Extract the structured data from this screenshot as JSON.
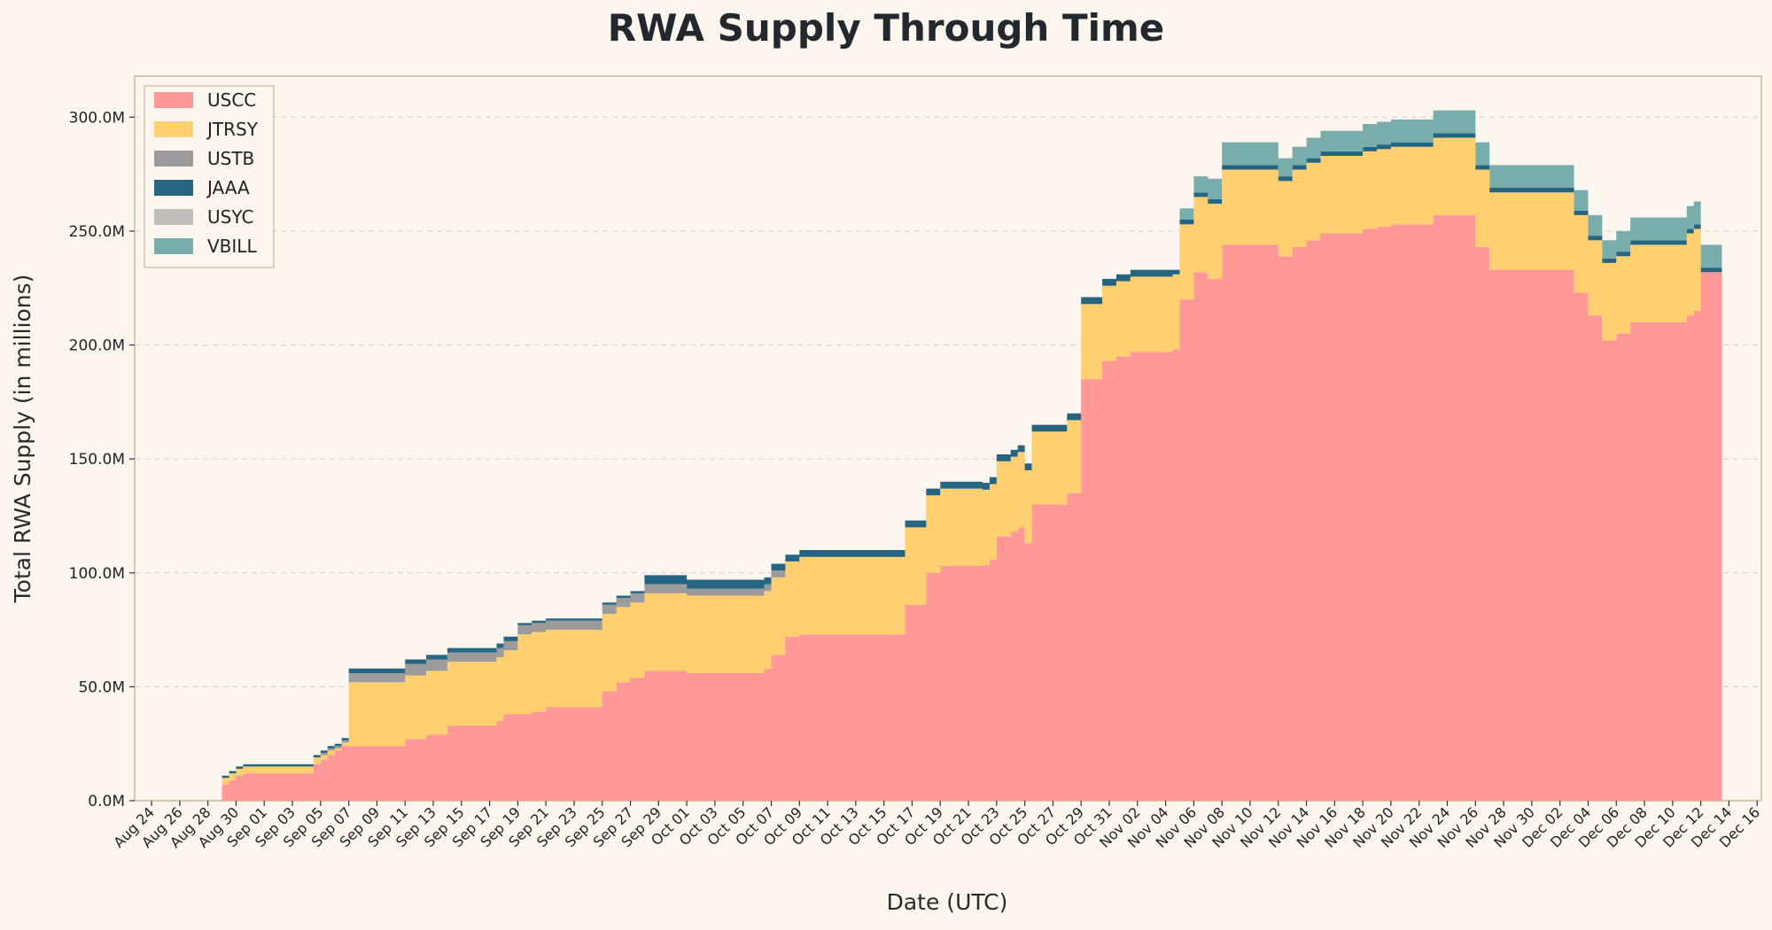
{
  "chart_data": {
    "type": "area",
    "stacked": true,
    "title": "RWA Supply Through Time",
    "xlabel": "Date (UTC)",
    "ylabel": "Total RWA Supply (in millions)",
    "ylim": [
      0,
      318
    ],
    "y_ticks": [
      {
        "value": 0,
        "label": "0.0M"
      },
      {
        "value": 50,
        "label": "50.0M"
      },
      {
        "value": 100,
        "label": "100.0M"
      },
      {
        "value": 150,
        "label": "150.0M"
      },
      {
        "value": 200,
        "label": "200.0M"
      },
      {
        "value": 250,
        "label": "250.0M"
      },
      {
        "value": 300,
        "label": "300.0M"
      }
    ],
    "x_days_range": [
      -1.2,
      114.3
    ],
    "x_ticks": [
      {
        "day": 0,
        "label": "Aug 24"
      },
      {
        "day": 2,
        "label": "Aug 26"
      },
      {
        "day": 4,
        "label": "Aug 28"
      },
      {
        "day": 6,
        "label": "Aug 30"
      },
      {
        "day": 8,
        "label": "Sep 01"
      },
      {
        "day": 10,
        "label": "Sep 03"
      },
      {
        "day": 12,
        "label": "Sep 05"
      },
      {
        "day": 14,
        "label": "Sep 07"
      },
      {
        "day": 16,
        "label": "Sep 09"
      },
      {
        "day": 18,
        "label": "Sep 11"
      },
      {
        "day": 20,
        "label": "Sep 13"
      },
      {
        "day": 22,
        "label": "Sep 15"
      },
      {
        "day": 24,
        "label": "Sep 17"
      },
      {
        "day": 26,
        "label": "Sep 19"
      },
      {
        "day": 28,
        "label": "Sep 21"
      },
      {
        "day": 30,
        "label": "Sep 23"
      },
      {
        "day": 32,
        "label": "Sep 25"
      },
      {
        "day": 34,
        "label": "Sep 27"
      },
      {
        "day": 36,
        "label": "Sep 29"
      },
      {
        "day": 38,
        "label": "Oct 01"
      },
      {
        "day": 40,
        "label": "Oct 03"
      },
      {
        "day": 42,
        "label": "Oct 05"
      },
      {
        "day": 44,
        "label": "Oct 07"
      },
      {
        "day": 46,
        "label": "Oct 09"
      },
      {
        "day": 48,
        "label": "Oct 11"
      },
      {
        "day": 50,
        "label": "Oct 13"
      },
      {
        "day": 52,
        "label": "Oct 15"
      },
      {
        "day": 54,
        "label": "Oct 17"
      },
      {
        "day": 56,
        "label": "Oct 19"
      },
      {
        "day": 58,
        "label": "Oct 21"
      },
      {
        "day": 60,
        "label": "Oct 23"
      },
      {
        "day": 62,
        "label": "Oct 25"
      },
      {
        "day": 64,
        "label": "Oct 27"
      },
      {
        "day": 66,
        "label": "Oct 29"
      },
      {
        "day": 68,
        "label": "Oct 31"
      },
      {
        "day": 70,
        "label": "Nov 02"
      },
      {
        "day": 72,
        "label": "Nov 04"
      },
      {
        "day": 74,
        "label": "Nov 06"
      },
      {
        "day": 76,
        "label": "Nov 08"
      },
      {
        "day": 78,
        "label": "Nov 10"
      },
      {
        "day": 80,
        "label": "Nov 12"
      },
      {
        "day": 82,
        "label": "Nov 14"
      },
      {
        "day": 84,
        "label": "Nov 16"
      },
      {
        "day": 86,
        "label": "Nov 18"
      },
      {
        "day": 88,
        "label": "Nov 20"
      },
      {
        "day": 90,
        "label": "Nov 22"
      },
      {
        "day": 92,
        "label": "Nov 24"
      },
      {
        "day": 94,
        "label": "Nov 26"
      },
      {
        "day": 96,
        "label": "Nov 28"
      },
      {
        "day": 98,
        "label": "Nov 30"
      },
      {
        "day": 100,
        "label": "Dec 02"
      },
      {
        "day": 102,
        "label": "Dec 04"
      },
      {
        "day": 104,
        "label": "Dec 06"
      },
      {
        "day": 106,
        "label": "Dec 08"
      },
      {
        "day": 108,
        "label": "Dec 10"
      },
      {
        "day": 110,
        "label": "Dec 12"
      },
      {
        "day": 112,
        "label": "Dec 14"
      },
      {
        "day": 114,
        "label": "Dec 16"
      }
    ],
    "grid": "y-dashed",
    "legend_position": "top-left",
    "x_unit": "days since Aug 24",
    "series": [
      {
        "name": "USCC",
        "color": "#ff9896",
        "points": [
          [
            5.0,
            7
          ],
          [
            5.5,
            9
          ],
          [
            6.0,
            11
          ],
          [
            6.5,
            12
          ],
          [
            11.0,
            12
          ],
          [
            11.5,
            16
          ],
          [
            12.0,
            18
          ],
          [
            12.5,
            20
          ],
          [
            13.0,
            22
          ],
          [
            13.5,
            24
          ],
          [
            18.0,
            27
          ],
          [
            19.5,
            29
          ],
          [
            21.0,
            33
          ],
          [
            24.5,
            35
          ],
          [
            25.0,
            38
          ],
          [
            27.0,
            39
          ],
          [
            28.0,
            41
          ],
          [
            32.0,
            48
          ],
          [
            33.0,
            52
          ],
          [
            34.0,
            54
          ],
          [
            35.0,
            57
          ],
          [
            38.0,
            56
          ],
          [
            43.5,
            58
          ],
          [
            44.0,
            64
          ],
          [
            45.0,
            72
          ],
          [
            46.0,
            73
          ],
          [
            53.5,
            86
          ],
          [
            55.0,
            100
          ],
          [
            56.0,
            103
          ],
          [
            59.0,
            103.5
          ],
          [
            59.5,
            106
          ],
          [
            60.0,
            116
          ],
          [
            61.0,
            118
          ],
          [
            61.5,
            120
          ],
          [
            62.0,
            113
          ],
          [
            62.5,
            130
          ],
          [
            65.0,
            135
          ],
          [
            66.0,
            185
          ],
          [
            67.5,
            193
          ],
          [
            68.5,
            195
          ],
          [
            69.5,
            197
          ],
          [
            72.5,
            198
          ],
          [
            73.0,
            220
          ],
          [
            74.0,
            232
          ],
          [
            75.0,
            229
          ],
          [
            76.0,
            244
          ],
          [
            80.0,
            239
          ],
          [
            81.0,
            243
          ],
          [
            82.0,
            246
          ],
          [
            83.0,
            249
          ],
          [
            86.0,
            251
          ],
          [
            87.0,
            252
          ],
          [
            88.0,
            253
          ],
          [
            91.0,
            257
          ],
          [
            94.0,
            243
          ],
          [
            95.0,
            233
          ],
          [
            101.0,
            223
          ],
          [
            102.0,
            213
          ],
          [
            103.0,
            202
          ],
          [
            104.0,
            205
          ],
          [
            105.0,
            210
          ],
          [
            109.0,
            213
          ],
          [
            109.5,
            215
          ],
          [
            110.0,
            232
          ],
          [
            111.5,
            232
          ]
        ]
      },
      {
        "name": "JTRSY",
        "color": "#ffcf70",
        "points": [
          [
            5.0,
            3
          ],
          [
            6.0,
            3
          ],
          [
            11.0,
            3
          ],
          [
            12.0,
            2
          ],
          [
            13.0,
            1
          ],
          [
            13.5,
            1.5
          ],
          [
            14.0,
            28
          ],
          [
            24.5,
            28
          ],
          [
            26.0,
            35
          ],
          [
            28.0,
            34
          ],
          [
            32.0,
            34
          ],
          [
            33.0,
            33
          ],
          [
            35.0,
            34
          ],
          [
            45.0,
            33
          ],
          [
            46.0,
            34
          ],
          [
            53.5,
            34
          ],
          [
            55.0,
            34
          ],
          [
            59.0,
            33
          ],
          [
            60.0,
            33
          ],
          [
            62.0,
            32
          ],
          [
            65.0,
            32
          ],
          [
            66.0,
            33
          ],
          [
            68.0,
            33
          ],
          [
            72.5,
            33
          ],
          [
            73.0,
            33
          ],
          [
            76.0,
            33
          ],
          [
            81.0,
            34
          ],
          [
            83.0,
            34
          ],
          [
            87.0,
            34
          ],
          [
            91.0,
            34
          ],
          [
            94.0,
            34
          ],
          [
            95.0,
            34
          ],
          [
            101.0,
            34
          ],
          [
            102.0,
            33
          ],
          [
            103.0,
            34
          ],
          [
            105.0,
            34
          ],
          [
            109.0,
            36
          ],
          [
            110.0,
            0
          ],
          [
            111.5,
            0
          ]
        ]
      },
      {
        "name": "USTB",
        "color": "#9c9a9a",
        "points": [
          [
            5.0,
            0
          ],
          [
            12.0,
            1
          ],
          [
            14.0,
            4
          ],
          [
            18.0,
            5
          ],
          [
            21.0,
            4
          ],
          [
            25.0,
            4
          ],
          [
            26.0,
            4
          ],
          [
            32.0,
            4
          ],
          [
            35.0,
            4
          ],
          [
            38.0,
            3
          ],
          [
            45.0,
            0
          ],
          [
            111.5,
            0
          ]
        ]
      },
      {
        "name": "JAAA",
        "color": "#266582",
        "points": [
          [
            5.0,
            1
          ],
          [
            12.0,
            1
          ],
          [
            14.0,
            2
          ],
          [
            18.0,
            2
          ],
          [
            26.0,
            1
          ],
          [
            32.0,
            1
          ],
          [
            35.0,
            4
          ],
          [
            38.0,
            4
          ],
          [
            43.5,
            3
          ],
          [
            45.0,
            3
          ],
          [
            46.0,
            3
          ],
          [
            53.5,
            3
          ],
          [
            55.0,
            3
          ],
          [
            59.0,
            3
          ],
          [
            62.0,
            3
          ],
          [
            65.0,
            3
          ],
          [
            66.0,
            3
          ],
          [
            72.5,
            2
          ],
          [
            73.0,
            2
          ],
          [
            76.0,
            2
          ],
          [
            81.0,
            2
          ],
          [
            83.0,
            2
          ],
          [
            87.0,
            2
          ],
          [
            91.0,
            2
          ],
          [
            94.0,
            2
          ],
          [
            95.0,
            2
          ],
          [
            101.0,
            2
          ],
          [
            102.0,
            2
          ],
          [
            105.0,
            2
          ],
          [
            109.0,
            2
          ],
          [
            110.0,
            2
          ],
          [
            111.5,
            2
          ]
        ]
      },
      {
        "name": "USYC",
        "color": "#c1bdba",
        "points": [
          [
            5.0,
            0
          ],
          [
            111.5,
            0
          ]
        ]
      },
      {
        "name": "VBILL",
        "color": "#79adab",
        "points": [
          [
            5.0,
            0
          ],
          [
            72.5,
            0
          ],
          [
            73.0,
            5
          ],
          [
            74.0,
            7
          ],
          [
            75.0,
            9
          ],
          [
            76.0,
            10
          ],
          [
            80.0,
            8
          ],
          [
            81.0,
            8
          ],
          [
            82.0,
            9
          ],
          [
            83.0,
            9
          ],
          [
            86.0,
            10
          ],
          [
            87.0,
            10
          ],
          [
            88.0,
            10
          ],
          [
            91.0,
            10
          ],
          [
            94.0,
            10
          ],
          [
            95.0,
            10
          ],
          [
            101.0,
            9
          ],
          [
            102.0,
            9
          ],
          [
            103.0,
            8
          ],
          [
            104.0,
            9
          ],
          [
            105.0,
            10
          ],
          [
            109.0,
            10
          ],
          [
            110.0,
            10
          ],
          [
            111.5,
            10
          ]
        ]
      }
    ]
  }
}
